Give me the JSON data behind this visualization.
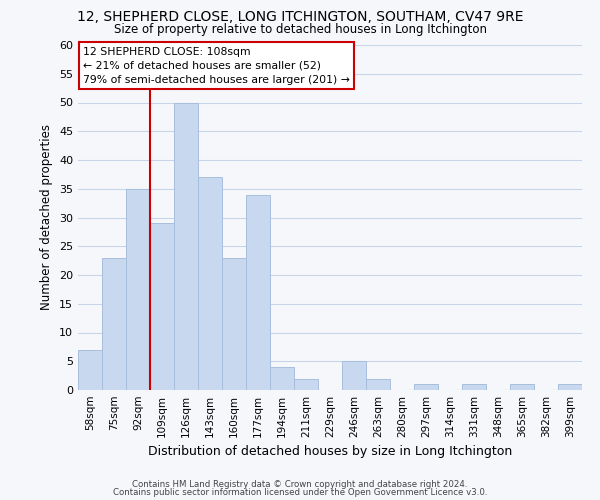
{
  "title_line1": "12, SHEPHERD CLOSE, LONG ITCHINGTON, SOUTHAM, CV47 9RE",
  "title_line2": "Size of property relative to detached houses in Long Itchington",
  "xlabel": "Distribution of detached houses by size in Long Itchington",
  "ylabel": "Number of detached properties",
  "bar_labels": [
    "58sqm",
    "75sqm",
    "92sqm",
    "109sqm",
    "126sqm",
    "143sqm",
    "160sqm",
    "177sqm",
    "194sqm",
    "211sqm",
    "229sqm",
    "246sqm",
    "263sqm",
    "280sqm",
    "297sqm",
    "314sqm",
    "331sqm",
    "348sqm",
    "365sqm",
    "382sqm",
    "399sqm"
  ],
  "bar_values": [
    7,
    23,
    35,
    29,
    50,
    37,
    23,
    34,
    4,
    2,
    0,
    5,
    2,
    0,
    1,
    0,
    1,
    0,
    1,
    0,
    1
  ],
  "bar_color": "#c8d9ef",
  "bar_edge_color": "#a8bedd",
  "grid_color": "#c8d4e8",
  "vline_color": "#cc0000",
  "annotation_text_line1": "12 SHEPHERD CLOSE: 108sqm",
  "annotation_text_line2": "← 21% of detached houses are smaller (52)",
  "annotation_text_line3": "79% of semi-detached houses are larger (201) →",
  "annotation_box_color": "#ffffff",
  "annotation_edge_color": "#cc0000",
  "ylim": [
    0,
    60
  ],
  "yticks": [
    0,
    5,
    10,
    15,
    20,
    25,
    30,
    35,
    40,
    45,
    50,
    55,
    60
  ],
  "footer_line1": "Contains HM Land Registry data © Crown copyright and database right 2024.",
  "footer_line2": "Contains public sector information licensed under the Open Government Licence v3.0.",
  "background_color": "#f5f7fb",
  "vline_bar_index": 3
}
